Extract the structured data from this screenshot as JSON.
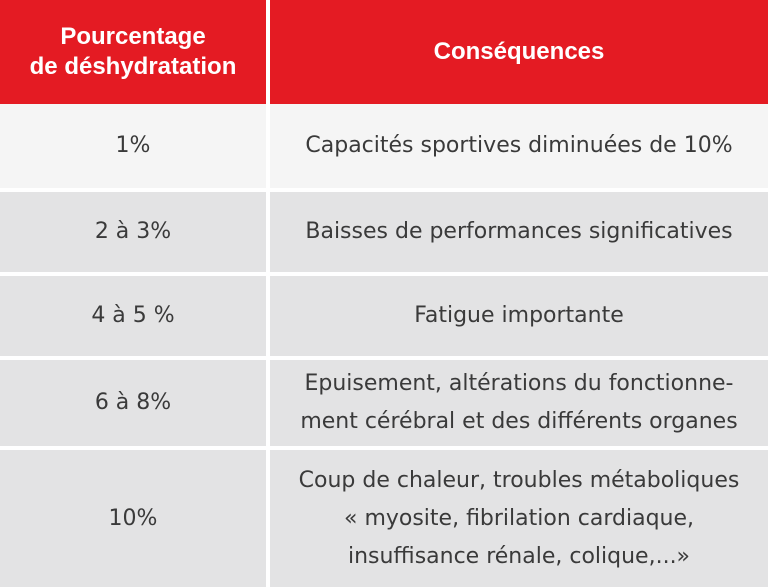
{
  "header": {
    "col1_line1": "Pourcentage",
    "col1_line2": "de déshydratation",
    "col2": "Conséquences"
  },
  "rows": [
    {
      "pct": "1%",
      "lines": [
        "Capacités sportives diminuées de 10%"
      ],
      "bg": "#f5f5f5"
    },
    {
      "pct": "2 à 3%",
      "lines": [
        "Baisses de performances significatives"
      ],
      "bg": "#e3e3e4"
    },
    {
      "pct": "4 à 5 %",
      "lines": [
        "Fatigue importante"
      ],
      "bg": "#e3e3e4"
    },
    {
      "pct": "6 à 8%",
      "lines": [
        "Epuisement, altérations du fonctionne-",
        "ment cérébral et des différents organes"
      ],
      "bg": "#e3e3e4"
    },
    {
      "pct": "10%",
      "lines": [
        "Coup de chaleur, troubles métaboliques",
        "« myosite, fibrilation cardiaque,",
        "insuffisance rénale, colique,...»"
      ],
      "bg": "#e3e3e4"
    }
  ],
  "colors": {
    "header_bg": "#e41b23",
    "text": "#3a3a3a"
  }
}
